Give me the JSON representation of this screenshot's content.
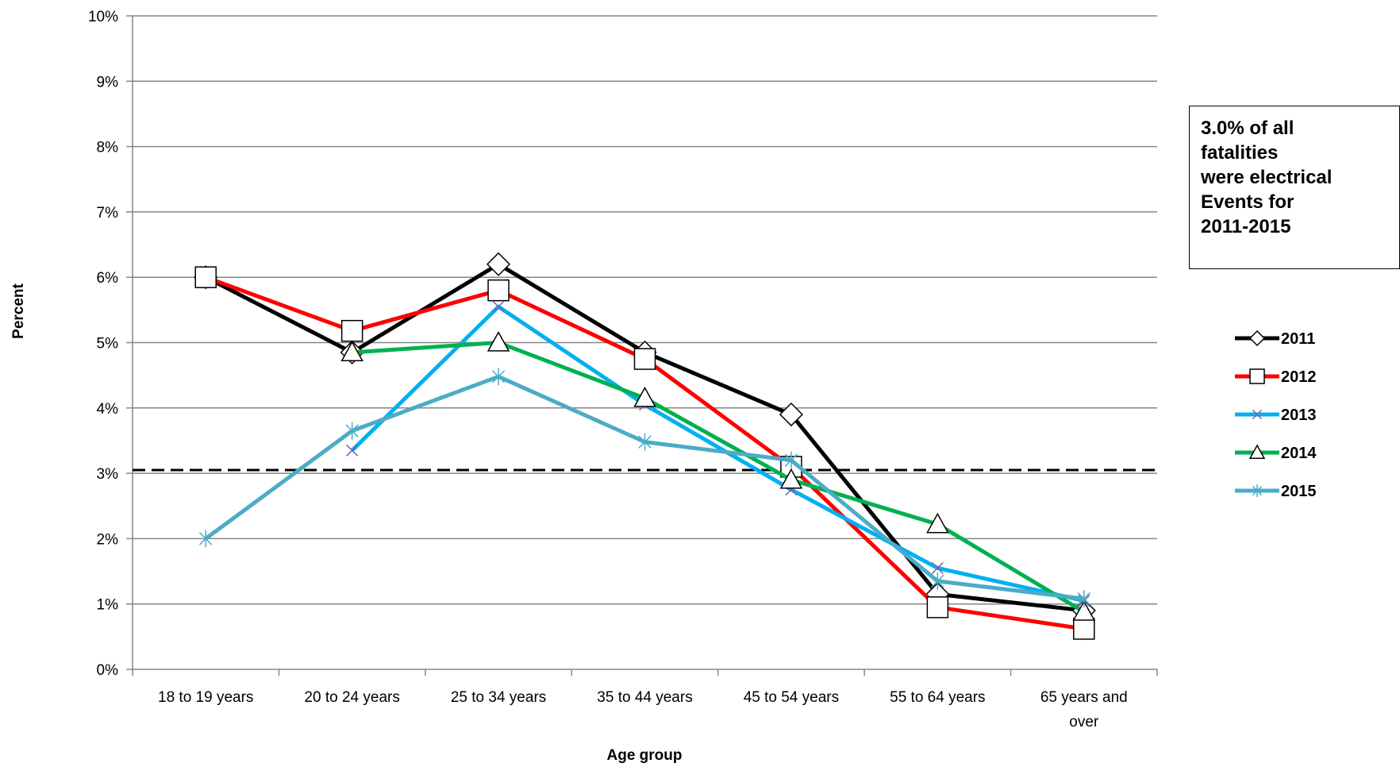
{
  "chart_data": {
    "type": "line",
    "xlabel": "Age group",
    "ylabel": "Percent",
    "ylim": [
      0,
      10
    ],
    "y_ticks": [
      "0%",
      "1%",
      "2%",
      "3%",
      "4%",
      "5%",
      "6%",
      "7%",
      "8%",
      "9%",
      "10%"
    ],
    "categories": [
      "18 to 19 years",
      "20 to 24 years",
      "25 to 34 years",
      "35 to 44 years",
      "45 to 54 years",
      "55 to 64 years",
      "65 years and over"
    ],
    "category_lines": [
      [
        "18 to 19 years"
      ],
      [
        "20 to 24 years"
      ],
      [
        "25 to 34 years"
      ],
      [
        "35 to 44 years"
      ],
      [
        "45 to 54 years"
      ],
      [
        "55 to 64 years"
      ],
      [
        "65 years and",
        "over"
      ]
    ],
    "grid": true,
    "legend_position": "right",
    "reference_line": {
      "value": 3.05,
      "style": "dashed",
      "color": "#000000"
    },
    "series": [
      {
        "name": "2011",
        "color": "#000000",
        "marker": "diamond",
        "values": [
          6.0,
          4.85,
          6.2,
          4.85,
          3.9,
          1.15,
          0.9
        ]
      },
      {
        "name": "2012",
        "color": "#ff0000",
        "marker": "square",
        "values": [
          6.0,
          5.18,
          5.8,
          4.75,
          3.1,
          0.95,
          0.62
        ]
      },
      {
        "name": "2013",
        "color": "#00b0f0",
        "marker": "x",
        "values": [
          null,
          3.35,
          5.55,
          4.05,
          2.75,
          1.55,
          1.05
        ]
      },
      {
        "name": "2014",
        "color": "#00b050",
        "marker": "triangle",
        "values": [
          null,
          4.85,
          5.0,
          4.15,
          2.9,
          2.22,
          0.88
        ]
      },
      {
        "name": "2015",
        "color": "#4bacc6",
        "marker": "asterisk",
        "values": [
          2.0,
          3.65,
          4.48,
          3.48,
          3.2,
          1.35,
          1.08
        ]
      }
    ],
    "annotation": {
      "lines": [
        "3.0% of all",
        "fatalities",
        "were electrical",
        "Events for",
        "2011-2015"
      ]
    }
  }
}
